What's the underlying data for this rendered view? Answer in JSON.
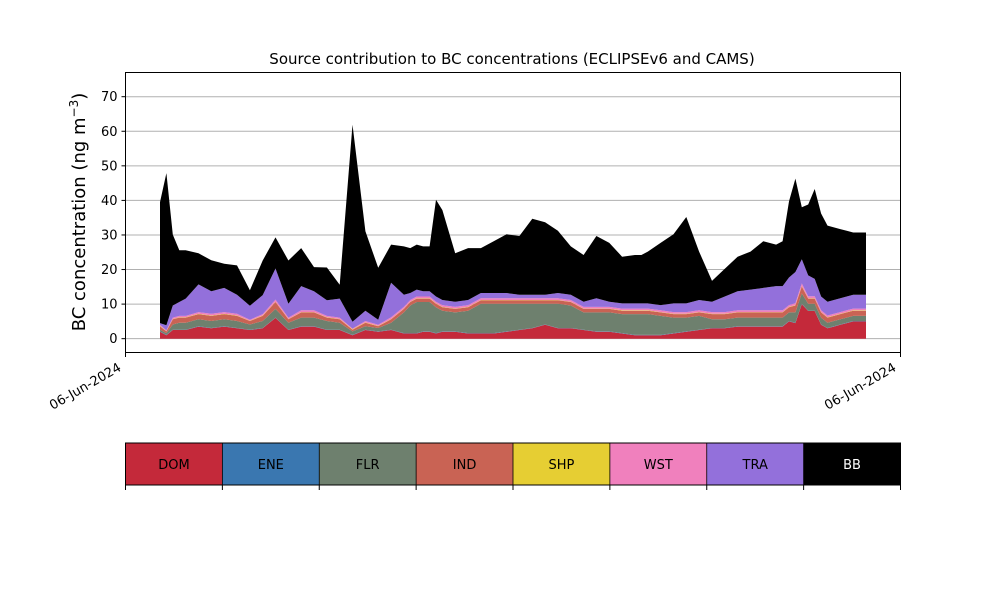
{
  "chart_data": {
    "type": "area",
    "title": "Source contribution to BC concentrations (ECLIPSEv6 and CAMS)",
    "ylabel": "BC concentration (ng m",
    "ylabel_superscript": "−3",
    "ylabel_close": ")",
    "ylim": [
      -4,
      77
    ],
    "y_ticks": [
      0,
      10,
      20,
      30,
      40,
      50,
      60,
      70
    ],
    "x_tick_labels": [
      "06-Jun-2024",
      "06-Jun-2024"
    ],
    "grid": "horizontal",
    "stacked": true,
    "x": [
      0,
      1,
      2,
      3,
      4,
      6,
      8,
      10,
      12,
      14,
      16,
      18,
      20,
      22,
      24,
      26,
      28,
      30,
      32,
      34,
      36,
      38,
      39,
      40,
      41,
      42,
      43,
      44,
      46,
      48,
      50,
      52,
      54,
      56,
      58,
      60,
      62,
      64,
      66,
      68,
      70,
      72,
      74,
      75,
      76,
      78,
      80,
      82,
      84,
      86,
      88,
      90,
      92,
      94,
      96,
      97,
      98,
      99,
      100,
      101,
      102,
      103,
      104,
      105,
      106,
      107,
      108,
      110
    ],
    "series": [
      {
        "name": "DOM",
        "color": "#c4293a",
        "values": [
          2.0,
          1.0,
          2.5,
          2.5,
          2.5,
          3.5,
          3.0,
          3.5,
          3.0,
          2.5,
          3.0,
          6.0,
          2.5,
          3.5,
          3.5,
          2.5,
          2.5,
          1.0,
          2.5,
          2.0,
          2.5,
          1.5,
          1.5,
          1.5,
          2.0,
          2.0,
          1.5,
          2.0,
          2.0,
          1.5,
          1.5,
          1.5,
          2.0,
          2.5,
          3.0,
          4.0,
          3.0,
          3.0,
          2.5,
          2.0,
          2.0,
          1.5,
          1.0,
          1.0,
          1.0,
          1.0,
          1.5,
          2.0,
          2.5,
          3.0,
          3.0,
          3.5,
          3.5,
          3.5,
          3.5,
          3.5,
          5.0,
          4.5,
          10.0,
          8.0,
          8.0,
          4.0,
          3.0,
          3.5,
          4.0,
          4.5,
          5.0,
          5.0
        ]
      },
      {
        "name": "ENE",
        "color": "#3a77b0",
        "values": [
          0.1,
          0.1,
          0.1,
          0.1,
          0.1,
          0.1,
          0.1,
          0.1,
          0.1,
          0.1,
          0.1,
          0.1,
          0.1,
          0.1,
          0.1,
          0.1,
          0.1,
          0.1,
          0.1,
          0.1,
          0.1,
          0.1,
          0.1,
          0.1,
          0.1,
          0.1,
          0.1,
          0.1,
          0.1,
          0.1,
          0.1,
          0.1,
          0.1,
          0.1,
          0.1,
          0.1,
          0.1,
          0.1,
          0.1,
          0.1,
          0.1,
          0.1,
          0.1,
          0.1,
          0.1,
          0.1,
          0.1,
          0.1,
          0.1,
          0.1,
          0.1,
          0.1,
          0.1,
          0.1,
          0.1,
          0.1,
          0.1,
          0.1,
          0.1,
          0.1,
          0.1,
          0.1,
          0.1,
          0.1,
          0.1,
          0.1,
          0.1,
          0.1
        ]
      },
      {
        "name": "FLR",
        "color": "#6e806e",
        "values": [
          0.5,
          0.5,
          1.5,
          2.0,
          2.0,
          2.0,
          2.0,
          2.0,
          2.0,
          1.5,
          2.0,
          2.5,
          2.0,
          2.5,
          2.5,
          2.5,
          2.0,
          1.0,
          1.0,
          1.0,
          2.0,
          6.0,
          8.0,
          9.0,
          8.5,
          8.5,
          7.5,
          6.0,
          5.5,
          6.5,
          8.5,
          8.5,
          8.0,
          7.5,
          7.0,
          6.0,
          7.0,
          6.5,
          5.0,
          5.5,
          5.5,
          5.5,
          6.0,
          6.0,
          6.0,
          5.5,
          4.5,
          4.0,
          4.0,
          2.5,
          2.5,
          2.5,
          2.5,
          2.5,
          2.5,
          2.5,
          2.5,
          3.0,
          3.0,
          2.0,
          2.0,
          2.0,
          1.5,
          1.5,
          1.5,
          1.5,
          1.5,
          1.5
        ]
      },
      {
        "name": "IND",
        "color": "#c96354",
        "values": [
          1.0,
          0.5,
          1.5,
          1.5,
          1.5,
          1.5,
          1.5,
          1.5,
          1.5,
          1.0,
          1.5,
          2.0,
          1.0,
          1.5,
          1.5,
          1.0,
          1.0,
          0.5,
          1.0,
          0.5,
          1.0,
          1.0,
          1.0,
          1.0,
          1.0,
          1.0,
          1.0,
          1.0,
          1.0,
          1.0,
          1.0,
          1.0,
          1.0,
          1.0,
          1.0,
          1.0,
          1.0,
          1.0,
          1.0,
          1.0,
          1.0,
          1.0,
          1.0,
          1.0,
          1.0,
          1.0,
          1.0,
          1.0,
          1.0,
          1.5,
          1.5,
          1.5,
          1.5,
          1.5,
          1.5,
          1.5,
          1.5,
          2.0,
          2.0,
          1.5,
          1.5,
          1.5,
          1.5,
          1.5,
          1.5,
          1.5,
          1.5,
          1.5
        ]
      },
      {
        "name": "SHP",
        "color": "#e6ce33",
        "values": [
          0.1,
          0.1,
          0.1,
          0.1,
          0.1,
          0.1,
          0.1,
          0.1,
          0.1,
          0.1,
          0.1,
          0.1,
          0.1,
          0.1,
          0.1,
          0.1,
          0.1,
          0.1,
          0.1,
          0.1,
          0.1,
          0.1,
          0.1,
          0.1,
          0.1,
          0.1,
          0.1,
          0.1,
          0.1,
          0.1,
          0.1,
          0.1,
          0.1,
          0.1,
          0.1,
          0.1,
          0.1,
          0.1,
          0.1,
          0.1,
          0.1,
          0.1,
          0.1,
          0.1,
          0.1,
          0.1,
          0.1,
          0.1,
          0.1,
          0.1,
          0.1,
          0.1,
          0.1,
          0.1,
          0.1,
          0.1,
          0.1,
          0.1,
          0.1,
          0.1,
          0.1,
          0.1,
          0.1,
          0.1,
          0.1,
          0.1,
          0.1,
          0.1
        ]
      },
      {
        "name": "WST",
        "color": "#f080bd",
        "values": [
          0.3,
          0.2,
          0.4,
          0.4,
          0.4,
          0.5,
          0.5,
          0.5,
          0.5,
          0.3,
          0.4,
          0.6,
          0.4,
          0.5,
          0.5,
          0.4,
          0.4,
          0.2,
          0.4,
          0.3,
          0.5,
          0.5,
          0.5,
          0.5,
          0.5,
          0.5,
          0.5,
          0.5,
          0.5,
          0.5,
          0.5,
          0.5,
          0.5,
          0.5,
          0.5,
          0.5,
          0.5,
          0.5,
          0.5,
          0.5,
          0.5,
          0.5,
          0.5,
          0.5,
          0.5,
          0.5,
          0.5,
          0.5,
          0.5,
          0.5,
          0.5,
          0.5,
          0.5,
          0.5,
          0.5,
          0.5,
          0.5,
          0.6,
          0.8,
          0.6,
          0.6,
          0.5,
          0.5,
          0.5,
          0.5,
          0.5,
          0.5,
          0.5
        ]
      },
      {
        "name": "TRA",
        "color": "#9370db",
        "values": [
          0.5,
          1.5,
          3.5,
          4.0,
          5.0,
          8.0,
          6.5,
          7.0,
          5.5,
          4.0,
          5.5,
          9.0,
          4.0,
          7.0,
          5.5,
          4.5,
          5.5,
          2.0,
          3.0,
          1.5,
          10.0,
          3.5,
          2.0,
          2.0,
          1.5,
          1.5,
          1.5,
          1.5,
          1.5,
          1.5,
          1.5,
          1.5,
          1.5,
          1.0,
          1.0,
          1.0,
          1.5,
          1.5,
          1.5,
          2.5,
          1.5,
          1.5,
          1.5,
          1.5,
          1.5,
          1.5,
          2.5,
          2.5,
          3.0,
          3.0,
          4.5,
          5.5,
          6.0,
          6.5,
          7.0,
          7.0,
          8.0,
          9.0,
          7.0,
          6.0,
          5.0,
          4.0,
          4.0,
          4.0,
          4.0,
          4.0,
          4.0,
          4.0
        ]
      },
      {
        "name": "BB",
        "color": "#000000",
        "values": [
          35.0,
          44.0,
          20.5,
          15.0,
          14.0,
          9.0,
          9.0,
          7.0,
          8.5,
          4.5,
          10.0,
          9.0,
          12.5,
          11.0,
          7.0,
          9.5,
          4.0,
          57.0,
          23.0,
          15.0,
          11.0,
          14.0,
          13.0,
          13.0,
          13.0,
          13.0,
          28.0,
          26.0,
          14.0,
          15.0,
          13.0,
          15.0,
          17.0,
          17.0,
          22.0,
          21.0,
          18.0,
          14.0,
          13.5,
          18.0,
          17.0,
          13.5,
          14.0,
          14.0,
          15.0,
          18.0,
          20.0,
          25.0,
          14.0,
          6.0,
          8.0,
          10.0,
          11.0,
          13.5,
          12.0,
          13.0,
          22.0,
          27.0,
          15.0,
          20.5,
          26.0,
          24.0,
          22.0,
          21.0,
          20.0,
          19.0,
          18.0,
          18.0
        ]
      }
    ],
    "legend": [
      "DOM",
      "ENE",
      "FLR",
      "IND",
      "SHP",
      "WST",
      "TRA",
      "BB"
    ],
    "legend_placement": "bottom (colorbar)"
  }
}
